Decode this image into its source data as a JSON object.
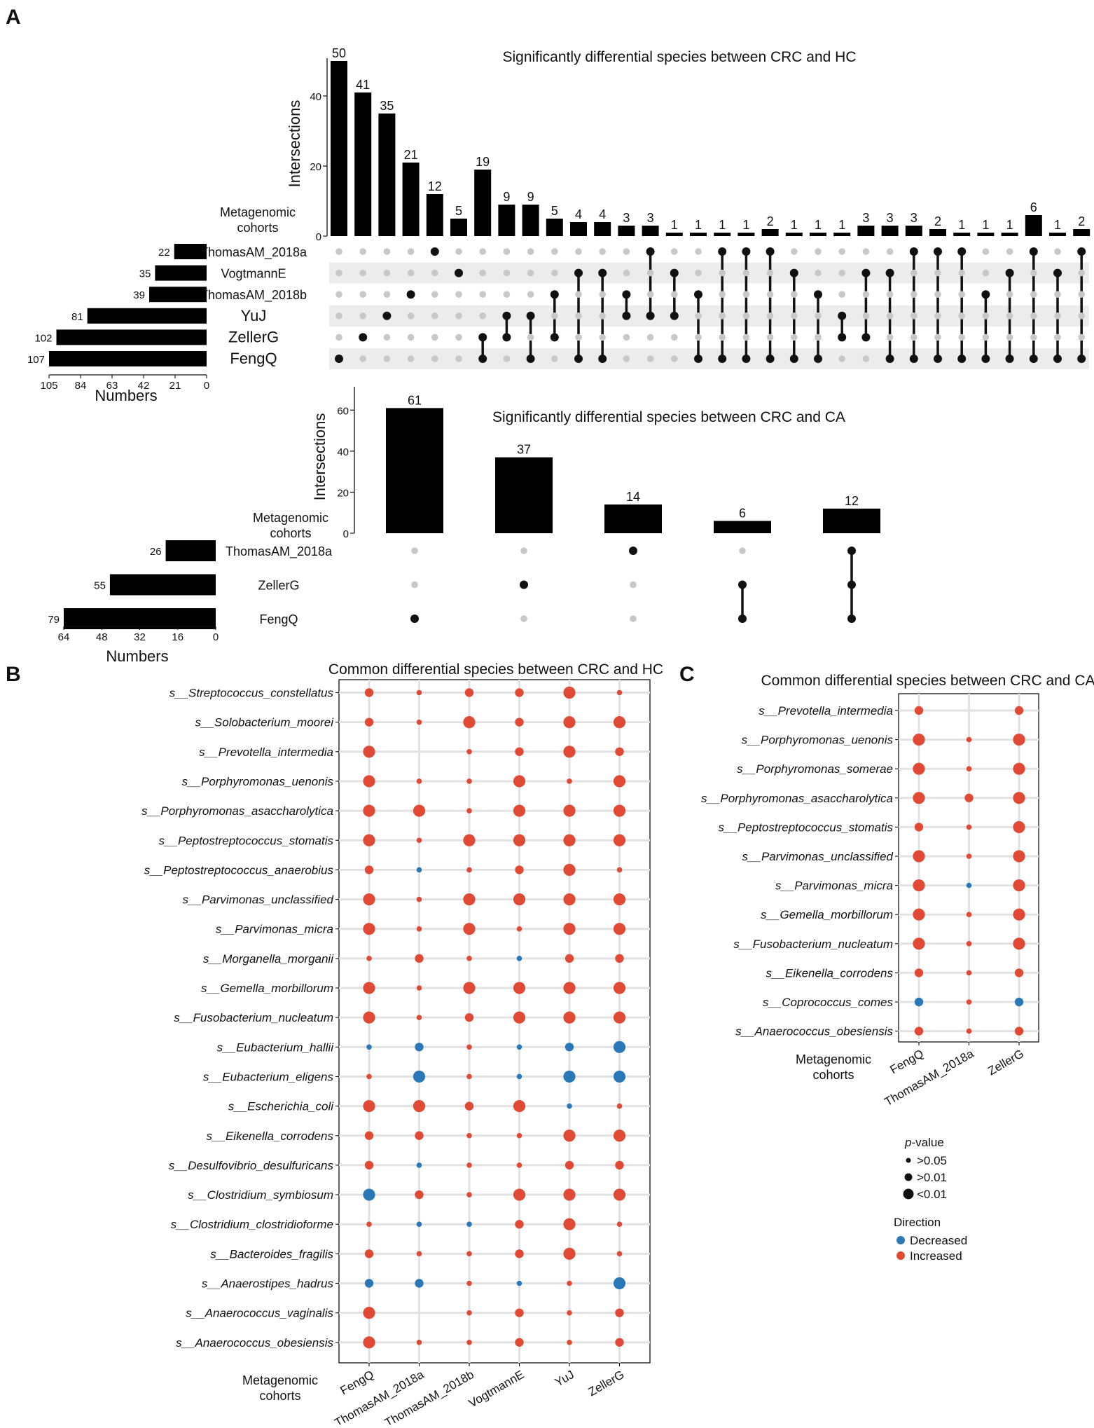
{
  "panel_letters": {
    "a": "A",
    "b": "B",
    "c": "C"
  },
  "chart_data": [
    {
      "id": "A1",
      "type": "bar",
      "subtype": "upset",
      "title": "Significantly differential species between CRC and HC",
      "ylabel": "Intersections",
      "matrix_label": [
        "Metagenomic",
        "cohorts"
      ],
      "set_axis_label": "Numbers",
      "ylim": [
        0,
        50
      ],
      "yticks": [
        0,
        20,
        40
      ],
      "set_ticks": [
        "105",
        "84",
        "63",
        "42",
        "21",
        "0"
      ],
      "sets": [
        "ThomasAM_2018a",
        "VogtmannE",
        "ThomasAM_2018b",
        "YuJ",
        "ZellerG",
        "FengQ"
      ],
      "set_sizes": [
        22,
        35,
        39,
        81,
        102,
        107
      ],
      "intersections": [
        {
          "value": 50,
          "members": [
            5
          ]
        },
        {
          "value": 41,
          "members": [
            4
          ]
        },
        {
          "value": 35,
          "members": [
            3
          ]
        },
        {
          "value": 21,
          "members": [
            2
          ]
        },
        {
          "value": 12,
          "members": [
            0
          ]
        },
        {
          "value": 5,
          "members": [
            1
          ]
        },
        {
          "value": 19,
          "members": [
            4,
            5
          ]
        },
        {
          "value": 9,
          "members": [
            3,
            4
          ]
        },
        {
          "value": 9,
          "members": [
            3,
            5
          ]
        },
        {
          "value": 5,
          "members": [
            2,
            4
          ]
        },
        {
          "value": 4,
          "members": [
            1,
            5
          ]
        },
        {
          "value": 4,
          "members": [
            1,
            5
          ]
        },
        {
          "value": 3,
          "members": [
            2,
            3
          ]
        },
        {
          "value": 3,
          "members": [
            0,
            3
          ]
        },
        {
          "value": 1,
          "members": [
            1,
            3
          ]
        },
        {
          "value": 1,
          "members": [
            2,
            5
          ]
        },
        {
          "value": 1,
          "members": [
            0,
            5
          ]
        },
        {
          "value": 1,
          "members": [
            0,
            5
          ]
        },
        {
          "value": 2,
          "members": [
            0,
            5
          ]
        },
        {
          "value": 1,
          "members": [
            1,
            5
          ]
        },
        {
          "value": 1,
          "members": [
            2,
            5
          ]
        },
        {
          "value": 1,
          "members": [
            3,
            4
          ]
        },
        {
          "value": 3,
          "members": [
            1,
            4
          ]
        },
        {
          "value": 3,
          "members": [
            1,
            5
          ]
        },
        {
          "value": 3,
          "members": [
            0,
            5
          ]
        },
        {
          "value": 2,
          "members": [
            0,
            5
          ]
        },
        {
          "value": 1,
          "members": [
            0,
            5
          ]
        },
        {
          "value": 1,
          "members": [
            2,
            5
          ]
        },
        {
          "value": 1,
          "members": [
            1,
            5
          ]
        },
        {
          "value": 6,
          "members": [
            0,
            5
          ]
        },
        {
          "value": 1,
          "members": [
            1,
            5
          ]
        },
        {
          "value": 2,
          "members": [
            0,
            5
          ]
        }
      ]
    },
    {
      "id": "A2",
      "type": "bar",
      "subtype": "upset",
      "title": "Significantly differential species between CRC and CA",
      "ylabel": "Intersections",
      "matrix_label": [
        "Metagenomic",
        "cohorts"
      ],
      "set_axis_label": "Numbers",
      "ylim": [
        0,
        70
      ],
      "yticks": [
        0,
        20,
        40,
        60
      ],
      "set_ticks": [
        "64",
        "48",
        "32",
        "16",
        "0"
      ],
      "sets": [
        "ThomasAM_2018a",
        "ZellerG",
        "FengQ"
      ],
      "set_sizes": [
        26,
        55,
        79
      ],
      "intersections": [
        {
          "value": 61,
          "members": [
            2
          ]
        },
        {
          "value": 37,
          "members": [
            1
          ]
        },
        {
          "value": 14,
          "members": [
            0
          ]
        },
        {
          "value": 6,
          "members": [
            1,
            2
          ]
        },
        {
          "value": 12,
          "members": [
            0,
            1,
            2
          ]
        }
      ]
    },
    {
      "id": "B",
      "type": "scatter",
      "subtype": "dot-matrix",
      "title": "Common differential species between CRC and HC",
      "xlabel": [
        "Metagenomic",
        "cohorts"
      ],
      "categories": [
        "FengQ",
        "ThomasAM_2018a",
        "ThomasAM_2018b",
        "VogtmannE",
        "YuJ",
        "ZellerG"
      ],
      "species": [
        "s__Streptococcus_constellatus",
        "s__Solobacterium_moorei",
        "s__Prevotella_intermedia",
        "s__Porphyromonas_uenonis",
        "s__Porphyromonas_asaccharolytica",
        "s__Peptostreptococcus_stomatis",
        "s__Peptostreptococcus_anaerobius",
        "s__Parvimonas_unclassified",
        "s__Parvimonas_micra",
        "s__Morganella_morganii",
        "s__Gemella_morbillorum",
        "s__Fusobacterium_nucleatum",
        "s__Eubacterium_hallii",
        "s__Eubacterium_eligens",
        "s__Escherichia_coli",
        "s__Eikenella_corrodens",
        "s__Desulfovibrio_desulfuricans",
        "s__Clostridium_symbiosum",
        "s__Clostridium_clostridioforme",
        "s__Bacteroides_fragilis",
        "s__Anaerostipes_hadrus",
        "s__Anaerococcus_vaginalis",
        "s__Anaerococcus_obesiensis"
      ],
      "size_levels": [
        ">0.05",
        ">0.01",
        "<0.01"
      ],
      "size_code": "1 = >0.05, 2 = >0.01, 3 = <0.01",
      "direction_code": "I = Increased, D = Decreased",
      "dots": [
        [
          "2I",
          "1I",
          "2I",
          "2I",
          "3I",
          "1I"
        ],
        [
          "2I",
          "1I",
          "3I",
          "2I",
          "3I",
          "3I"
        ],
        [
          "3I",
          "0",
          "1I",
          "2I",
          "3I",
          "2I"
        ],
        [
          "3I",
          "1I",
          "1I",
          "3I",
          "1I",
          "3I"
        ],
        [
          "3I",
          "3I",
          "1I",
          "3I",
          "3I",
          "3I"
        ],
        [
          "3I",
          "1I",
          "3I",
          "3I",
          "3I",
          "3I"
        ],
        [
          "2I",
          "1D",
          "1I",
          "2I",
          "3I",
          "1I"
        ],
        [
          "3I",
          "1I",
          "3I",
          "3I",
          "3I",
          "3I"
        ],
        [
          "3I",
          "1I",
          "3I",
          "1I",
          "3I",
          "3I"
        ],
        [
          "1I",
          "2I",
          "1I",
          "1D",
          "2I",
          "2I"
        ],
        [
          "3I",
          "1I",
          "3I",
          "3I",
          "3I",
          "3I"
        ],
        [
          "3I",
          "1I",
          "2I",
          "3I",
          "3I",
          "3I"
        ],
        [
          "1D",
          "2D",
          "1I",
          "1D",
          "2D",
          "3D"
        ],
        [
          "1I",
          "3D",
          "1I",
          "1D",
          "3D",
          "3D"
        ],
        [
          "3I",
          "3I",
          "2I",
          "3I",
          "1D",
          "1I"
        ],
        [
          "2I",
          "2I",
          "1I",
          "1I",
          "3I",
          "3I"
        ],
        [
          "2I",
          "1D",
          "1I",
          "1I",
          "2I",
          "2I"
        ],
        [
          "3D",
          "2I",
          "1I",
          "3I",
          "3I",
          "3I"
        ],
        [
          "1I",
          "1D",
          "1D",
          "2I",
          "3I",
          "1I"
        ],
        [
          "2I",
          "1I",
          "1I",
          "2I",
          "3I",
          "1I"
        ],
        [
          "2D",
          "2D",
          "1I",
          "1D",
          "1I",
          "3D"
        ],
        [
          "3I",
          "0",
          "1I",
          "2I",
          "1I",
          "2I"
        ],
        [
          "3I",
          "1I",
          "1I",
          "2I",
          "1I",
          "2I"
        ]
      ]
    },
    {
      "id": "C",
      "type": "scatter",
      "subtype": "dot-matrix",
      "title": "Common differential species between CRC and CA",
      "xlabel": [
        "Metagenomic",
        "cohorts"
      ],
      "categories": [
        "FengQ",
        "ThomasAM_2018a",
        "ZellerG"
      ],
      "species": [
        "s__Prevotella_intermedia",
        "s__Porphyromonas_uenonis",
        "s__Porphyromonas_somerae",
        "s__Porphyromonas_asaccharolytica",
        "s__Peptostreptococcus_stomatis",
        "s__Parvimonas_unclassified",
        "s__Parvimonas_micra",
        "s__Gemella_morbillorum",
        "s__Fusobacterium_nucleatum",
        "s__Eikenella_corrodens",
        "s__Coprococcus_comes",
        "s__Anaerococcus_obesiensis"
      ],
      "size_levels": [
        ">0.05",
        ">0.01",
        "<0.01"
      ],
      "size_code": "1 = >0.05, 2 = >0.01, 3 = <0.01",
      "direction_code": "I = Increased, D = Decreased",
      "dots": [
        [
          "2I",
          "0",
          "2I"
        ],
        [
          "3I",
          "1I",
          "3I"
        ],
        [
          "3I",
          "1I",
          "3I"
        ],
        [
          "3I",
          "2I",
          "3I"
        ],
        [
          "2I",
          "1I",
          "3I"
        ],
        [
          "3I",
          "1I",
          "3I"
        ],
        [
          "3I",
          "1D",
          "3I"
        ],
        [
          "3I",
          "1I",
          "3I"
        ],
        [
          "3I",
          "1I",
          "3I"
        ],
        [
          "2I",
          "1I",
          "2I"
        ],
        [
          "2D",
          "1I",
          "2D"
        ],
        [
          "2I",
          "1I",
          "2I"
        ]
      ]
    }
  ],
  "legend": {
    "pvalue_title_italic": "p",
    "pvalue_title_rest": "-value",
    "pvalue_items": [
      ">0.05",
      ">0.01",
      "<0.01"
    ],
    "direction_title": "Direction",
    "direction_items": [
      "Decreased",
      "Increased"
    ]
  },
  "colors": {
    "increased": "#e04a35",
    "decreased": "#2b78b8",
    "bar": "#000000",
    "inactive_dot": "#c8c8c8",
    "stripe": "#ececec"
  }
}
